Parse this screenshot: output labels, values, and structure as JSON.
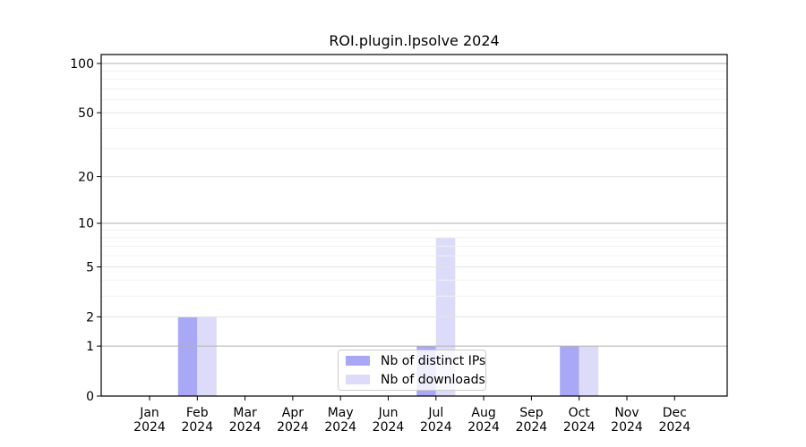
{
  "chart_data": {
    "type": "bar",
    "title": "ROI.plugin.lpsolve 2024",
    "categories": [
      "Jan",
      "Feb",
      "Mar",
      "Apr",
      "May",
      "Jun",
      "Jul",
      "Aug",
      "Sep",
      "Oct",
      "Nov",
      "Dec"
    ],
    "category_year": "2024",
    "series": [
      {
        "key": "distinct-ips",
        "name": "Nb of distinct IPs",
        "color": "#a8a8f6",
        "values": [
          0,
          2,
          0,
          0,
          0,
          0,
          1,
          0,
          0,
          1,
          0,
          0
        ]
      },
      {
        "key": "downloads",
        "name": "Nb of downloads",
        "color": "#dcdcfa",
        "values": [
          0,
          2,
          0,
          0,
          0,
          0,
          8,
          0,
          0,
          1,
          0,
          0
        ]
      }
    ],
    "yscale": "log10(1+y)",
    "y_ticks": [
      0,
      1,
      2,
      5,
      10,
      20,
      50,
      100
    ],
    "y_minor_ticks": [
      3,
      4,
      6,
      7,
      8,
      9,
      30,
      40,
      60,
      70,
      80,
      90
    ],
    "grid": true,
    "legend_position": "bottom-center",
    "colors": {
      "grid_decade": "#b0b0b0",
      "grid_mid": "#e2e2e2",
      "grid_minor": "#f1f1f1",
      "spine": "#000000",
      "legend_border": "#cccccc"
    }
  }
}
